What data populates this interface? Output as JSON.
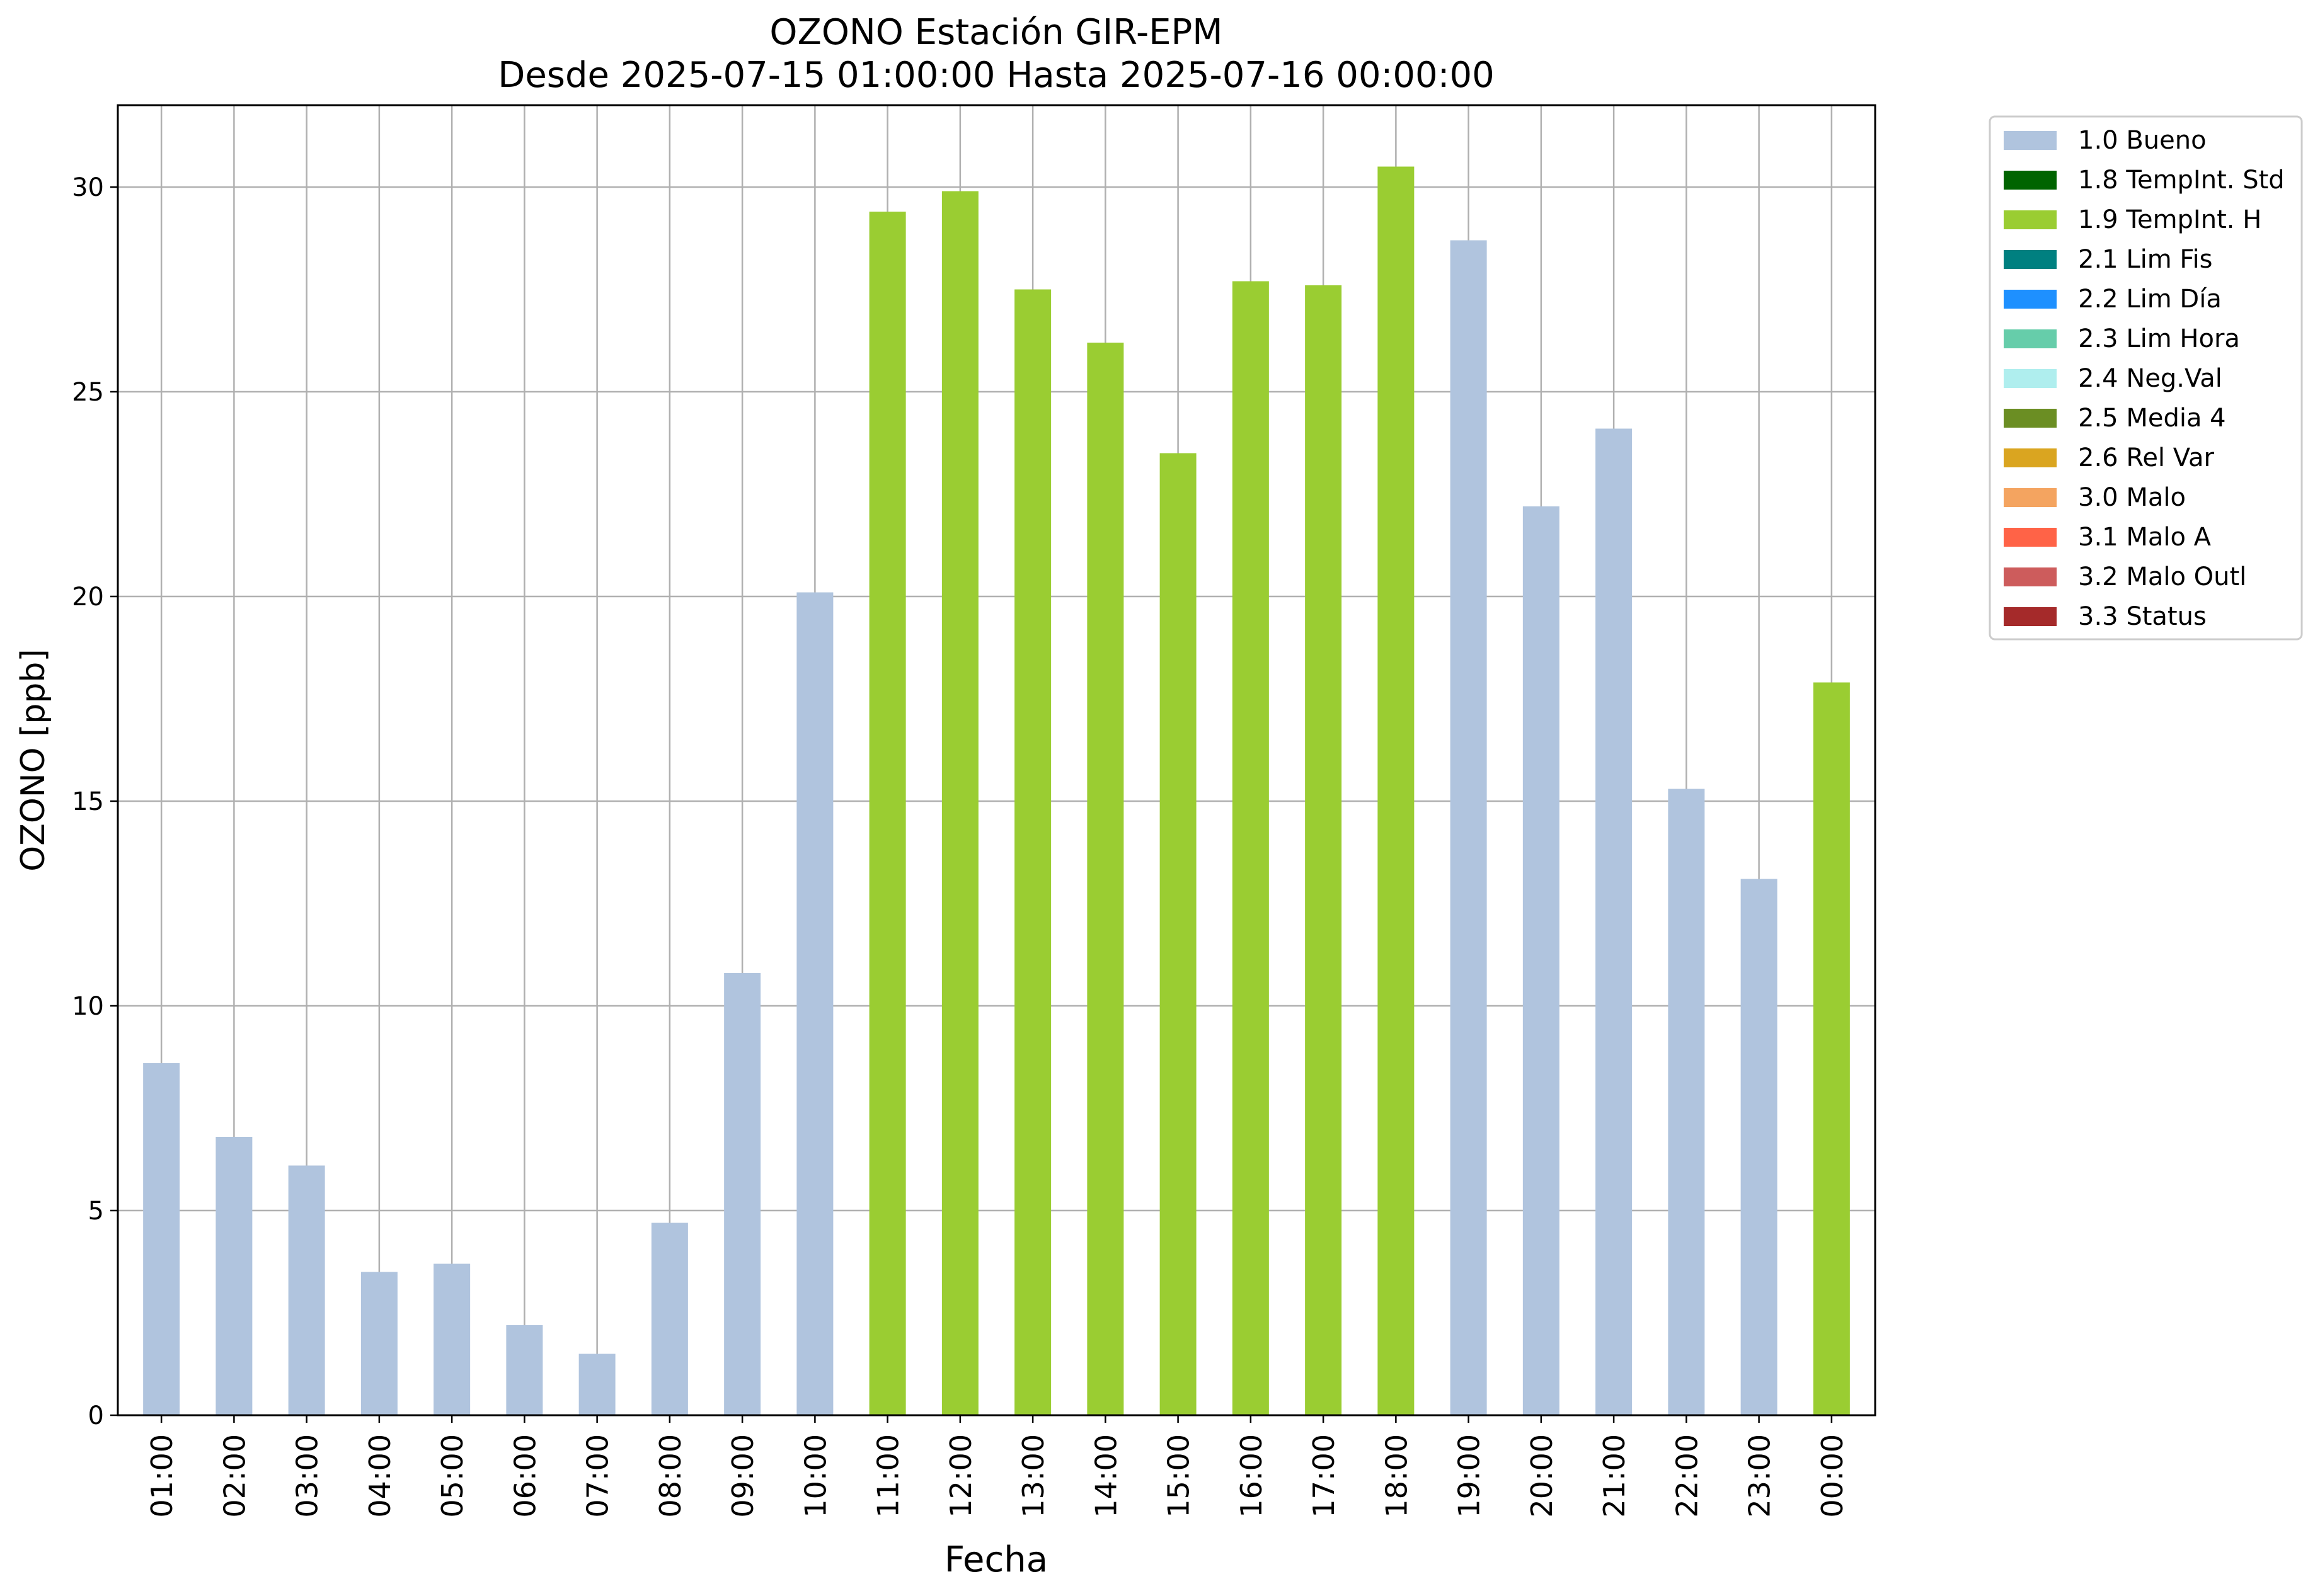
{
  "chart_data": {
    "type": "bar",
    "title": "OZONO Estación GIR-EPM",
    "subtitle": "Desde 2025-07-15 01:00:00 Hasta 2025-07-16 00:00:00",
    "xlabel": "Fecha",
    "ylabel": "OZONO [ppb]",
    "ylim": [
      0,
      32
    ],
    "yticks": [
      "0",
      "5",
      "10",
      "15",
      "20",
      "25",
      "30"
    ],
    "grid": true,
    "legend_position": "outside top-right",
    "categories": [
      "01:00",
      "02:00",
      "03:00",
      "04:00",
      "05:00",
      "06:00",
      "07:00",
      "08:00",
      "09:00",
      "10:00",
      "11:00",
      "12:00",
      "13:00",
      "14:00",
      "15:00",
      "16:00",
      "17:00",
      "18:00",
      "19:00",
      "20:00",
      "21:00",
      "22:00",
      "23:00",
      "00:00"
    ],
    "values": [
      8.6,
      6.8,
      6.1,
      3.5,
      3.7,
      2.2,
      1.5,
      4.7,
      10.8,
      20.1,
      29.4,
      29.9,
      27.5,
      26.2,
      23.5,
      27.7,
      27.6,
      30.5,
      28.7,
      22.2,
      24.1,
      15.3,
      13.1,
      17.9
    ],
    "flags": [
      "1.0 Bueno",
      "1.0 Bueno",
      "1.0 Bueno",
      "1.0 Bueno",
      "1.0 Bueno",
      "1.0 Bueno",
      "1.0 Bueno",
      "1.0 Bueno",
      "1.0 Bueno",
      "1.0 Bueno",
      "1.9 TempInt. H",
      "1.9 TempInt. H",
      "1.9 TempInt. H",
      "1.9 TempInt. H",
      "1.9 TempInt. H",
      "1.9 TempInt. H",
      "1.9 TempInt. H",
      "1.9 TempInt. H",
      "1.0 Bueno",
      "1.0 Bueno",
      "1.0 Bueno",
      "1.0 Bueno",
      "1.0 Bueno",
      "1.9 TempInt. H"
    ],
    "legend": [
      {
        "label": "1.0 Bueno",
        "color": "#b0c4de"
      },
      {
        "label": "1.8 TempInt. Std",
        "color": "#006400"
      },
      {
        "label": "1.9 TempInt. H",
        "color": "#9acd32"
      },
      {
        "label": "2.1 Lim Fis",
        "color": "#008080"
      },
      {
        "label": "2.2 Lim Día",
        "color": "#1e90ff"
      },
      {
        "label": "2.3 Lim Hora",
        "color": "#66cdaa"
      },
      {
        "label": "2.4 Neg.Val",
        "color": "#afeeee"
      },
      {
        "label": "2.5 Media 4",
        "color": "#6b8e23"
      },
      {
        "label": "2.6 Rel Var",
        "color": "#daa520"
      },
      {
        "label": "3.0 Malo",
        "color": "#f4a460"
      },
      {
        "label": "3.1 Malo A",
        "color": "#ff6347"
      },
      {
        "label": "3.2 Malo Outl",
        "color": "#cd5c5c"
      },
      {
        "label": "3.3 Status",
        "color": "#a52a2a"
      }
    ]
  }
}
